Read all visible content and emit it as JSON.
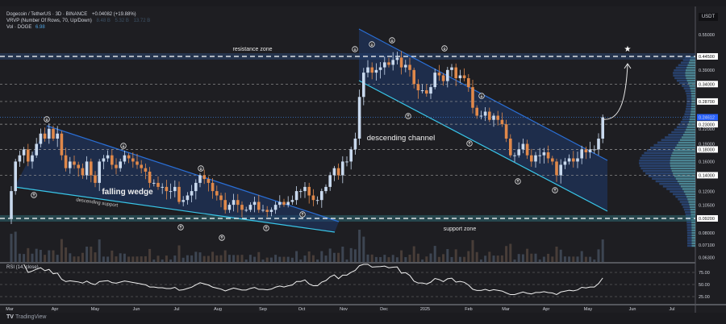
{
  "header": {
    "symbol_line": "Dogecoin / TetherUS · 3D · BINANCE",
    "change": "+0.04082 (+19.88%)",
    "vrvp_label": "VRVP (Number Of Rows, 70, Up/Down)",
    "vrvp_values": [
      "8.48 B",
      "5.32 B",
      "13.72 B"
    ],
    "vol_label": "Vol · DOGE",
    "vol_value": "6.98"
  },
  "axis": {
    "currency": "USDT",
    "price_labels": [
      {
        "text": "0.55000",
        "value": 0.55,
        "boxed": false
      },
      {
        "text": "0.44500",
        "value": 0.445,
        "boxed": true
      },
      {
        "text": "0.39000",
        "value": 0.39,
        "boxed": false
      },
      {
        "text": "0.34000",
        "value": 0.34,
        "boxed": true
      },
      {
        "text": "0.28700",
        "value": 0.287,
        "boxed": true
      },
      {
        "text": "0.24612",
        "value": 0.24612,
        "boxed": "current"
      },
      {
        "text": "0.23000",
        "value": 0.23,
        "boxed": true
      },
      {
        "text": "0.22000",
        "value": 0.22,
        "boxed": false
      },
      {
        "text": "0.19000",
        "value": 0.19,
        "boxed": false
      },
      {
        "text": "0.18000",
        "value": 0.18,
        "boxed": true
      },
      {
        "text": "0.16000",
        "value": 0.16,
        "boxed": false
      },
      {
        "text": "0.14000",
        "value": 0.14,
        "boxed": true
      },
      {
        "text": "0.12000",
        "value": 0.12,
        "boxed": false
      },
      {
        "text": "0.10500",
        "value": 0.105,
        "boxed": false
      },
      {
        "text": "0.09200",
        "value": 0.092,
        "boxed": true
      },
      {
        "text": "0.08000",
        "value": 0.08,
        "boxed": false
      },
      {
        "text": "0.07100",
        "value": 0.071,
        "boxed": false
      },
      {
        "text": "0.06300",
        "value": 0.063,
        "boxed": false
      }
    ],
    "rsi_labels": [
      "75.00",
      "50.00",
      "25.00"
    ],
    "months": [
      "Mar",
      "Apr",
      "May",
      "Jun",
      "Jul",
      "Aug",
      "Sep",
      "Oct",
      "Nov",
      "Dec",
      "2025",
      "Feb",
      "Mar",
      "Apr",
      "May",
      "Jun",
      "Jul"
    ]
  },
  "chart_data": {
    "type": "candlestick",
    "scale": "log",
    "timeframe": "3D",
    "ylim": [
      0.063,
      0.58
    ],
    "up_color": "#c9d9ee",
    "down_color": "#e0884a",
    "closes": [
      0.12,
      0.16,
      0.17,
      0.18,
      0.16,
      0.17,
      0.19,
      0.21,
      0.2,
      0.22,
      0.2,
      0.21,
      0.17,
      0.15,
      0.16,
      0.155,
      0.15,
      0.14,
      0.16,
      0.14,
      0.13,
      0.16,
      0.165,
      0.17,
      0.155,
      0.15,
      0.16,
      0.17,
      0.165,
      0.16,
      0.155,
      0.15,
      0.145,
      0.13,
      0.13,
      0.125,
      0.125,
      0.12,
      0.12,
      0.125,
      0.108,
      0.11,
      0.115,
      0.12,
      0.13,
      0.14,
      0.135,
      0.13,
      0.12,
      0.115,
      0.11,
      0.1,
      0.105,
      0.11,
      0.105,
      0.1,
      0.1,
      0.105,
      0.108,
      0.1,
      0.1,
      0.098,
      0.1,
      0.105,
      0.108,
      0.105,
      0.108,
      0.11,
      0.12,
      0.12,
      0.125,
      0.115,
      0.11,
      0.11,
      0.12,
      0.125,
      0.14,
      0.15,
      0.14,
      0.16,
      0.16,
      0.18,
      0.2,
      0.3,
      0.38,
      0.4,
      0.38,
      0.39,
      0.4,
      0.42,
      0.41,
      0.43,
      0.44,
      0.4,
      0.41,
      0.39,
      0.34,
      0.32,
      0.32,
      0.31,
      0.33,
      0.38,
      0.37,
      0.35,
      0.39,
      0.4,
      0.36,
      0.37,
      0.36,
      0.33,
      0.27,
      0.25,
      0.25,
      0.26,
      0.24,
      0.25,
      0.24,
      0.23,
      0.2,
      0.17,
      0.17,
      0.18,
      0.19,
      0.17,
      0.16,
      0.17,
      0.17,
      0.175,
      0.165,
      0.16,
      0.14,
      0.155,
      0.16,
      0.165,
      0.16,
      0.165,
      0.18,
      0.175,
      0.18,
      0.18,
      0.2,
      0.24612
    ],
    "levels": [
      0.445,
      0.34,
      0.287,
      0.23,
      0.18,
      0.14,
      0.092
    ],
    "current_price": 0.24612,
    "annotations": {
      "resistance": "resistance zone",
      "support": "support zone",
      "wedge": "falling wedge",
      "wedge_support": "descending support",
      "channel": "descending channel"
    },
    "rsi_title": "RSI (14, close)",
    "rsi_levels": [
      75,
      50,
      25
    ]
  },
  "footer": {
    "brand": "TradingView"
  }
}
